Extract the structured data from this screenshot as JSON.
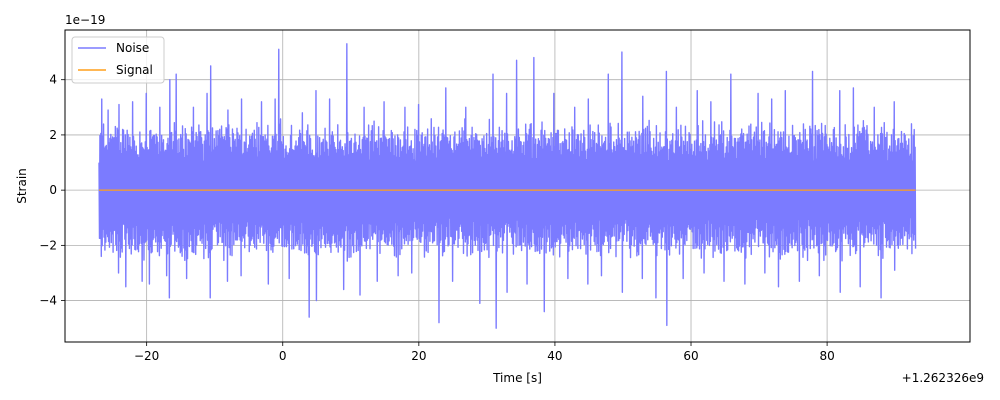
{
  "chart_data": {
    "type": "line",
    "title": "",
    "xlabel": "Time [s]",
    "ylabel": "Strain",
    "x_offset_label": "+1.262326e9",
    "y_exponent_label": "1e−19",
    "xlim": [
      -32,
      101
    ],
    "ylim": [
      -5.5,
      5.8
    ],
    "x_ticks": [
      -20,
      0,
      20,
      40,
      60,
      80
    ],
    "x_tick_labels": [
      "−20",
      "0",
      "20",
      "40",
      "60",
      "80"
    ],
    "y_ticks": [
      -4,
      -2,
      0,
      2,
      4
    ],
    "y_tick_labels": [
      "−4",
      "−2",
      "0",
      "2",
      "4"
    ],
    "grid": true,
    "legend_position": "top-left",
    "series": [
      {
        "name": "Noise",
        "color": "#7b7bff",
        "x_range": [
          -27,
          93
        ],
        "typical_band": [
          -2.3,
          2.3
        ],
        "peaks": [
          {
            "x": -26.5,
            "y": 3.3
          },
          {
            "x": -25.5,
            "y": 2.9
          },
          {
            "x": -24,
            "y": 3.1
          },
          {
            "x": -22,
            "y": 3.2
          },
          {
            "x": -20,
            "y": 3.5
          },
          {
            "x": -18,
            "y": 3.0
          },
          {
            "x": -16.5,
            "y": 4.0
          },
          {
            "x": -15.5,
            "y": 4.2
          },
          {
            "x": -13,
            "y": 3.0
          },
          {
            "x": -11,
            "y": 3.5
          },
          {
            "x": -10.5,
            "y": 4.5
          },
          {
            "x": -8,
            "y": 2.9
          },
          {
            "x": -6,
            "y": 3.3
          },
          {
            "x": -3,
            "y": 3.2
          },
          {
            "x": -1,
            "y": 3.3
          },
          {
            "x": -0.5,
            "y": 5.1
          },
          {
            "x": 3,
            "y": 2.8
          },
          {
            "x": 5,
            "y": 3.6
          },
          {
            "x": 7,
            "y": 3.3
          },
          {
            "x": 9.5,
            "y": 5.3
          },
          {
            "x": 12,
            "y": 3.0
          },
          {
            "x": 15,
            "y": 3.2
          },
          {
            "x": 18,
            "y": 3.0
          },
          {
            "x": 20,
            "y": 3.1
          },
          {
            "x": 24,
            "y": 3.7
          },
          {
            "x": 27,
            "y": 3.0
          },
          {
            "x": 31,
            "y": 4.2
          },
          {
            "x": 33,
            "y": 3.5
          },
          {
            "x": 34.5,
            "y": 4.7
          },
          {
            "x": 37,
            "y": 4.8
          },
          {
            "x": 40,
            "y": 3.5
          },
          {
            "x": 43,
            "y": 3.0
          },
          {
            "x": 45,
            "y": 3.3
          },
          {
            "x": 48,
            "y": 4.2
          },
          {
            "x": 50,
            "y": 5.0
          },
          {
            "x": 53,
            "y": 3.4
          },
          {
            "x": 56.5,
            "y": 4.3
          },
          {
            "x": 58,
            "y": 3.0
          },
          {
            "x": 61,
            "y": 3.6
          },
          {
            "x": 63,
            "y": 3.2
          },
          {
            "x": 66,
            "y": 4.2
          },
          {
            "x": 70,
            "y": 3.5
          },
          {
            "x": 72,
            "y": 3.3
          },
          {
            "x": 74,
            "y": 3.6
          },
          {
            "x": 78,
            "y": 4.3
          },
          {
            "x": 82,
            "y": 3.6
          },
          {
            "x": 84,
            "y": 3.7
          },
          {
            "x": 87,
            "y": 3.0
          },
          {
            "x": 90,
            "y": 3.2
          },
          {
            "x": 92.5,
            "y": 2.4
          }
        ],
        "troughs": [
          {
            "x": -26.5,
            "y": -2.4
          },
          {
            "x": -24,
            "y": -3.0
          },
          {
            "x": -23,
            "y": -3.5
          },
          {
            "x": -20.5,
            "y": -3.3
          },
          {
            "x": -19.5,
            "y": -3.4
          },
          {
            "x": -17,
            "y": -3.1
          },
          {
            "x": -16.5,
            "y": -3.9
          },
          {
            "x": -14,
            "y": -3.2
          },
          {
            "x": -10.5,
            "y": -3.9
          },
          {
            "x": -8,
            "y": -3.3
          },
          {
            "x": -6,
            "y": -3.1
          },
          {
            "x": -2,
            "y": -3.4
          },
          {
            "x": 1,
            "y": -3.2
          },
          {
            "x": 4,
            "y": -4.6
          },
          {
            "x": 5,
            "y": -4.0
          },
          {
            "x": 9,
            "y": -3.6
          },
          {
            "x": 11.5,
            "y": -3.8
          },
          {
            "x": 14,
            "y": -3.3
          },
          {
            "x": 17,
            "y": -3.1
          },
          {
            "x": 19,
            "y": -3.0
          },
          {
            "x": 23,
            "y": -4.8
          },
          {
            "x": 25,
            "y": -3.3
          },
          {
            "x": 29,
            "y": -4.1
          },
          {
            "x": 31.5,
            "y": -5.0
          },
          {
            "x": 33,
            "y": -3.7
          },
          {
            "x": 36,
            "y": -3.4
          },
          {
            "x": 38.5,
            "y": -4.4
          },
          {
            "x": 42,
            "y": -3.2
          },
          {
            "x": 45,
            "y": -3.4
          },
          {
            "x": 47,
            "y": -3.1
          },
          {
            "x": 50,
            "y": -3.7
          },
          {
            "x": 53,
            "y": -3.2
          },
          {
            "x": 55,
            "y": -3.9
          },
          {
            "x": 56.5,
            "y": -4.9
          },
          {
            "x": 59,
            "y": -3.2
          },
          {
            "x": 62,
            "y": -3.0
          },
          {
            "x": 65,
            "y": -3.3
          },
          {
            "x": 68,
            "y": -3.4
          },
          {
            "x": 71,
            "y": -3.0
          },
          {
            "x": 73,
            "y": -3.5
          },
          {
            "x": 76,
            "y": -3.3
          },
          {
            "x": 79,
            "y": -3.1
          },
          {
            "x": 82,
            "y": -3.7
          },
          {
            "x": 85,
            "y": -3.5
          },
          {
            "x": 88,
            "y": -3.9
          },
          {
            "x": 90,
            "y": -2.9
          },
          {
            "x": 92.5,
            "y": -2.3
          }
        ]
      },
      {
        "name": "Signal",
        "color": "#ff9f1c",
        "x_range": [
          -27,
          93
        ],
        "y": 0
      }
    ]
  }
}
